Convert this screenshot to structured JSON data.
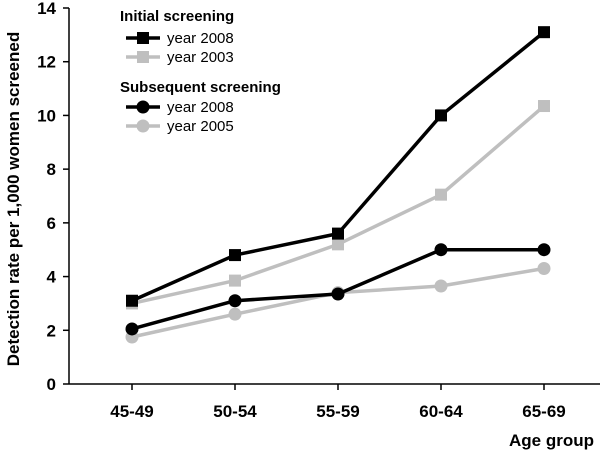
{
  "chart_data": {
    "type": "line",
    "xlabel": "Age group",
    "ylabel": "Detection rate per 1,000 women screened",
    "categories": [
      "45-49",
      "50-54",
      "55-59",
      "60-64",
      "65-69"
    ],
    "ylim": [
      0,
      14
    ],
    "yticks": [
      "0",
      "2",
      "4",
      "6",
      "8",
      "10",
      "12",
      "14"
    ],
    "grid": false,
    "legend_position": "top-left",
    "legend_groups": [
      {
        "title": "Initial screening",
        "series": [
          0,
          1
        ]
      },
      {
        "title": "Subsequent screening",
        "series": [
          2,
          3
        ]
      }
    ],
    "series": [
      {
        "name": "year 2008",
        "group": "Initial screening",
        "marker": "square",
        "color": "#000000",
        "values": [
          3.1,
          4.8,
          5.6,
          10.0,
          13.1
        ]
      },
      {
        "name": "year 2003",
        "group": "Initial screening",
        "marker": "square",
        "color": "#bfbfbf",
        "values": [
          3.0,
          3.85,
          5.2,
          7.05,
          10.35
        ]
      },
      {
        "name": "year 2008",
        "group": "Subsequent screening",
        "marker": "circle",
        "color": "#000000",
        "values": [
          2.05,
          3.1,
          3.35,
          5.0,
          5.0
        ]
      },
      {
        "name": "year 2005",
        "group": "Subsequent screening",
        "marker": "circle",
        "color": "#bfbfbf",
        "values": [
          1.75,
          2.6,
          3.4,
          3.65,
          4.3
        ]
      }
    ]
  }
}
